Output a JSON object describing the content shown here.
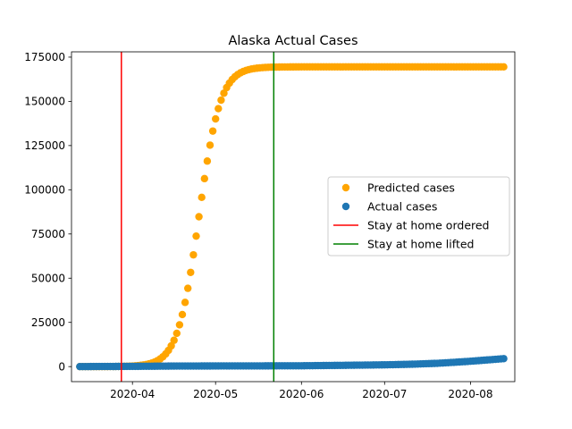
{
  "chart_data": {
    "type": "scatter",
    "title": "Alaska Actual Cases",
    "xlabel": "",
    "ylabel": "",
    "x_axis": "date",
    "xlim": [
      "2020-03-10",
      "2020-08-17"
    ],
    "ylim": [
      -8500,
      178000
    ],
    "x_ticks": [
      "2020-04",
      "2020-05",
      "2020-06",
      "2020-07",
      "2020-08"
    ],
    "y_ticks": [
      0,
      25000,
      50000,
      75000,
      100000,
      125000,
      150000,
      175000
    ],
    "y_tick_labels": [
      "0",
      "25000",
      "50000",
      "75000",
      "100000",
      "125000",
      "150000",
      "175000"
    ],
    "grid": false,
    "legend_position": "center-right",
    "series": [
      {
        "name": "Predicted cases",
        "color": "#ffa500",
        "marker": "circle",
        "logistic": {
          "L": 169500,
          "t0": "2020-04-25",
          "k": 0.26,
          "start": "2020-03-13",
          "end": "2020-08-13"
        }
      },
      {
        "name": "Actual cases",
        "color": "#1f77b4",
        "marker": "circle",
        "points": [
          [
            "2020-03-13",
            0
          ],
          [
            "2020-04-01",
            130
          ],
          [
            "2020-04-15",
            290
          ],
          [
            "2020-05-01",
            360
          ],
          [
            "2020-05-15",
            390
          ],
          [
            "2020-06-01",
            460
          ],
          [
            "2020-06-15",
            690
          ],
          [
            "2020-07-01",
            990
          ],
          [
            "2020-07-10",
            1300
          ],
          [
            "2020-07-20",
            1850
          ],
          [
            "2020-07-31",
            2900
          ],
          [
            "2020-08-05",
            3500
          ],
          [
            "2020-08-13",
            4500
          ]
        ]
      }
    ],
    "vlines": [
      {
        "name": "Stay at home ordered",
        "date": "2020-03-28",
        "color": "#ff0000"
      },
      {
        "name": "Stay at home lifted",
        "date": "2020-05-22",
        "color": "#008000"
      }
    ]
  }
}
